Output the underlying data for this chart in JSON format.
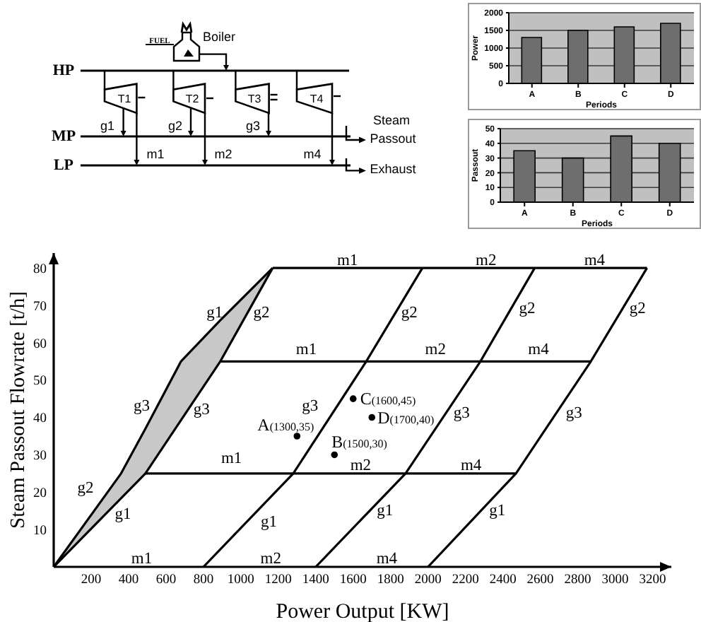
{
  "chart_data": [
    {
      "type": "other",
      "annotations": [
        "FUEL",
        "Boiler",
        "HP",
        "MP",
        "LP",
        "T1",
        "T2",
        "T3",
        "T4",
        "g1",
        "g2",
        "g3",
        "m1",
        "m2",
        "m4",
        "Steam",
        "Passout",
        "Exhaust"
      ]
    },
    {
      "type": "bar",
      "categories": [
        "A",
        "B",
        "C",
        "D"
      ],
      "values": [
        1300,
        1500,
        1600,
        1700
      ],
      "color": "#6e6e6e",
      "ylabel": "Power",
      "xlabel": "Periods",
      "ylim": [
        0,
        2000
      ],
      "yticks": [
        0,
        500,
        1000,
        1500,
        2000
      ],
      "grid": "y"
    },
    {
      "type": "bar",
      "categories": [
        "A",
        "B",
        "C",
        "D"
      ],
      "values": [
        35,
        30,
        45,
        40
      ],
      "color": "#6e6e6e",
      "ylabel": "Passout",
      "xlabel": "Periods",
      "ylim": [
        0,
        50
      ],
      "yticks": [
        0,
        10,
        20,
        30,
        40,
        50
      ],
      "grid": "y"
    },
    {
      "type": "line",
      "xlabel": "Power Output [KW]",
      "ylabel": "Steam Passout Flowrate [t/h]",
      "xlim": [
        0,
        3300
      ],
      "ylim": [
        0,
        84
      ],
      "xticks": [
        200,
        400,
        600,
        800,
        1000,
        1200,
        1400,
        1600,
        1800,
        2000,
        2200,
        2400,
        2600,
        2800,
        3000,
        3200
      ],
      "yticks": [
        10,
        20,
        30,
        40,
        50,
        60,
        70,
        80
      ],
      "series": [
        {
          "x": [
            0,
            360,
            490,
            680,
            890,
            1170
          ],
          "values": [
            0,
            25,
            37,
            55,
            66,
            80
          ],
          "lower": [
            0,
            18,
            25,
            39,
            55,
            80
          ],
          "upper": [
            0,
            25,
            37,
            55,
            66,
            80
          ],
          "color": "#000000"
        },
        {
          "x": [
            0,
            490,
            890,
            1170
          ],
          "values": [
            0,
            25,
            55,
            80
          ],
          "color": "#000000"
        },
        {
          "x": [
            800,
            1280,
            1670,
            1970
          ],
          "values": [
            0,
            25,
            55,
            80
          ],
          "color": "#000000"
        },
        {
          "x": [
            1400,
            1880,
            2280,
            2570
          ],
          "values": [
            0,
            25,
            55,
            80
          ],
          "color": "#000000"
        },
        {
          "x": [
            2000,
            2470,
            2870,
            3170
          ],
          "values": [
            0,
            25,
            55,
            80
          ],
          "color": "#000000"
        },
        {
          "x": [
            490,
            2470
          ],
          "values": [
            25,
            25
          ],
          "color": "#000000"
        },
        {
          "x": [
            890,
            2870
          ],
          "values": [
            55,
            55
          ],
          "color": "#000000"
        },
        {
          "x": [
            1170,
            3170
          ],
          "values": [
            80,
            80
          ],
          "color": "#000000"
        },
        {
          "type": "scatter",
          "x": [
            1300,
            1500,
            1600,
            1700
          ],
          "values": [
            35,
            30,
            45,
            40
          ],
          "color": "#000000",
          "marker": "circle"
        }
      ],
      "annotations": [
        "m1",
        "m2",
        "m4",
        "m1",
        "m2",
        "m4",
        "m1",
        "m2",
        "m4",
        "m1",
        "m2",
        "m4",
        "g1",
        "g2",
        "g3",
        "g3",
        "g2",
        "g1",
        "g3",
        "g1",
        "g2",
        "g2",
        "g2",
        "g3",
        "g3",
        "g1",
        "g1",
        {
          "text": "A(1300,35)",
          "x": 1300,
          "y": 35
        },
        {
          "text": "B(1500,30)",
          "x": 1500,
          "y": 30
        },
        {
          "text": "C(1600,45)",
          "x": 1600,
          "y": 45
        },
        {
          "text": "D(1700,40)",
          "x": 1700,
          "y": 40
        }
      ]
    }
  ]
}
